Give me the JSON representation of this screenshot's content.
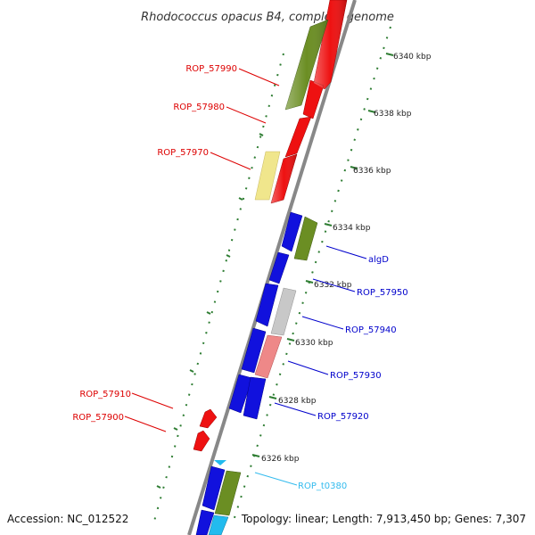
{
  "title": "Rhodococcus opacus B4, complete genome",
  "footer": {
    "accession": "Accession: NC_012522",
    "summary": "Topology: linear; Length: 7,913,450 bp; Genes: 7,307"
  },
  "ticks": [
    "6340 kbp",
    "6338 kbp",
    "6336 kbp",
    "6334 kbp",
    "6332 kbp",
    "6330 kbp",
    "6328 kbp",
    "6326 kbp"
  ],
  "gene_labels": {
    "rop57990": "ROP_57990",
    "rop57980": "ROP_57980",
    "rop57970": "ROP_57970",
    "algD": "algD",
    "rop57950": "ROP_57950",
    "rop57940": "ROP_57940",
    "rop57930": "ROP_57930",
    "rop57920": "ROP_57920",
    "rop57910": "ROP_57910",
    "rop57900": "ROP_57900",
    "ropt0380": "ROP_t0380"
  },
  "colors": {
    "red_gene": "#ee1111",
    "blue_gene": "#1111dd",
    "olive_gene": "#6b8e23",
    "pale_yellow_gene": "#f0e68c",
    "grey_gene": "#c8c8c8",
    "pink_gene": "#ee8888",
    "cyan_gene": "#22bbee",
    "tick_green": "#2e7d32",
    "backbone": "#888888"
  }
}
